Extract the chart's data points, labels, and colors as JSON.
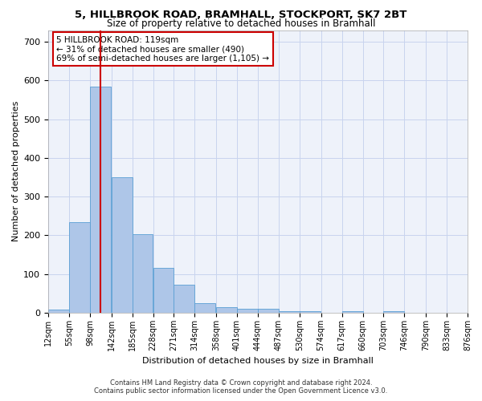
{
  "title": "5, HILLBROOK ROAD, BRAMHALL, STOCKPORT, SK7 2BT",
  "subtitle": "Size of property relative to detached houses in Bramhall",
  "xlabel": "Distribution of detached houses by size in Bramhall",
  "ylabel": "Number of detached properties",
  "footnote1": "Contains HM Land Registry data © Crown copyright and database right 2024.",
  "footnote2": "Contains public sector information licensed under the Open Government Licence v3.0.",
  "annotation_line1": "5 HILLBROOK ROAD: 119sqm",
  "annotation_line2": "← 31% of detached houses are smaller (490)",
  "annotation_line3": "69% of semi-detached houses are larger (1,105) →",
  "property_size": 119,
  "bin_edges": [
    12,
    55,
    98,
    142,
    185,
    228,
    271,
    314,
    358,
    401,
    444,
    487,
    530,
    574,
    617,
    660,
    703,
    746,
    790,
    833,
    876
  ],
  "bar_heights": [
    8,
    235,
    585,
    350,
    202,
    115,
    73,
    25,
    15,
    10,
    10,
    5,
    5,
    0,
    5,
    0,
    5,
    0,
    0,
    0
  ],
  "bar_color": "#aec6e8",
  "bar_edge_color": "#5a9fd4",
  "marker_color": "#cc0000",
  "annotation_box_color": "#cc0000",
  "background_color": "#eef2fa",
  "ylim": [
    0,
    730
  ],
  "yticks": [
    0,
    100,
    200,
    300,
    400,
    500,
    600,
    700
  ],
  "grid_color": "#c8d4ee",
  "title_fontsize": 9.5,
  "subtitle_fontsize": 8.5,
  "ylabel_fontsize": 8,
  "xlabel_fontsize": 8,
  "tick_fontsize": 7,
  "annot_fontsize": 7.5,
  "footnote_fontsize": 6.0
}
